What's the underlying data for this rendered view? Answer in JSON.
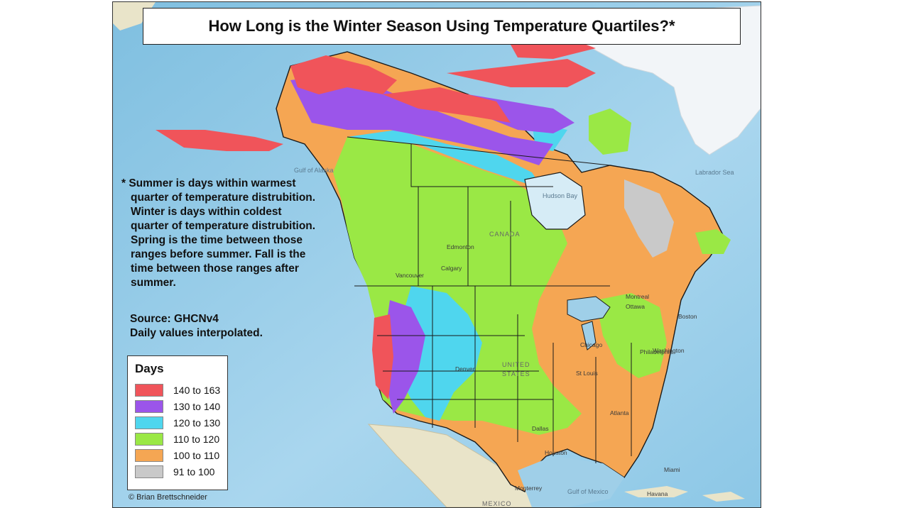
{
  "title": "How Long is the Winter Season Using Temperature Quartiles?*",
  "note_lines": [
    "* Summer is days within warmest",
    "quarter of temperature distrubition.",
    "Winter is days within coldest",
    "quarter of temperature distrubition.",
    "Spring is the time between those",
    "ranges before summer. Fall is the",
    "time between those ranges after",
    "summer."
  ],
  "source": {
    "line1": "Source: GHCNv4",
    "line2": "Daily values interpolated."
  },
  "legend": {
    "title": "Days",
    "items": [
      {
        "label": "140 to 163",
        "color": "#f0545a"
      },
      {
        "label": "130 to 140",
        "color": "#9b55ea"
      },
      {
        "label": "120 to 130",
        "color": "#4fd6ee"
      },
      {
        "label": "110 to 120",
        "color": "#9ae845"
      },
      {
        "label": "100 to 110",
        "color": "#f5a653"
      },
      {
        "label": "91 to 100",
        "color": "#c9c9c9"
      }
    ]
  },
  "credit": "© Brian Brettschneider",
  "map_labels": {
    "countries": [
      "CANADA",
      "UNITED",
      "STATES",
      "MEXICO"
    ],
    "water": [
      "Hudson Bay",
      "Gulf of Mexico",
      "Gulf of Alaska",
      "Labrador Sea"
    ],
    "cities": [
      "Edmonton",
      "Calgary",
      "Vancouver",
      "Montreal",
      "Boston",
      "Chicago",
      "Philadelphia",
      "Washington",
      "Denver",
      "St Louis",
      "Dallas",
      "Houston",
      "Monterrey",
      "Havana",
      "Miami",
      "Atlanta",
      "Ottawa"
    ]
  },
  "colors": {
    "ocean": "#9fcfe8",
    "land_outside": "#e9e4c9",
    "ice": "#f4f7fa",
    "border": "#1a1a1a"
  }
}
